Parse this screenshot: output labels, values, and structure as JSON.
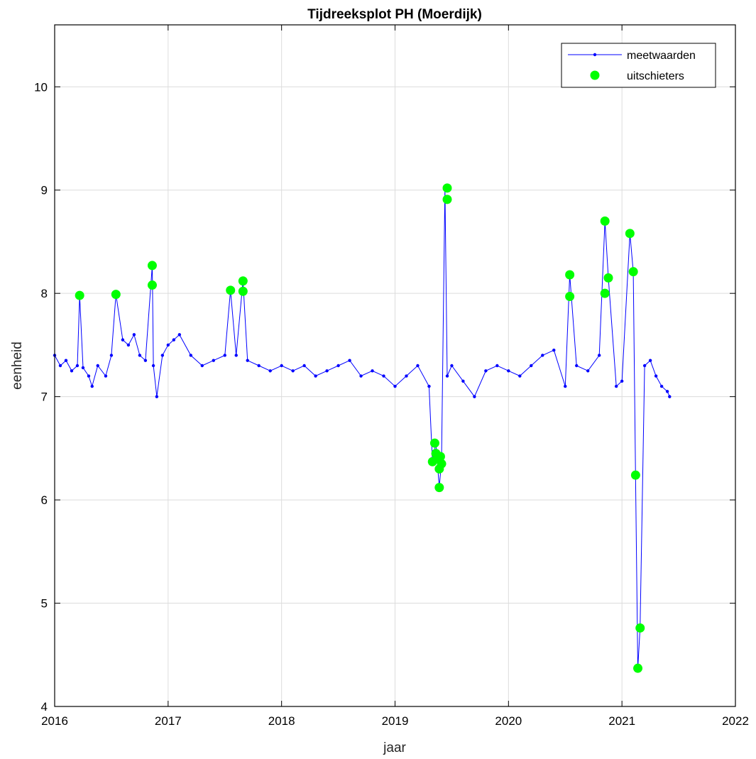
{
  "chart_data": {
    "type": "scatter",
    "title": "Tijdreeksplot PH (Moerdijk)",
    "xlabel": "jaar",
    "ylabel": "eenheid",
    "xlim": [
      2016,
      2022
    ],
    "ylim": [
      4,
      10.6
    ],
    "xticks": [
      2016,
      2017,
      2018,
      2019,
      2020,
      2021,
      2022
    ],
    "yticks": [
      4,
      5,
      6,
      7,
      8,
      9,
      10
    ],
    "grid": true,
    "legend_position": "top-right",
    "series": [
      {
        "name": "meetwaarden",
        "kind": "line-with-markers",
        "color": "#0000ff",
        "x": [
          2016.0,
          2016.05,
          2016.1,
          2016.15,
          2016.2,
          2016.22,
          2016.25,
          2016.3,
          2016.33,
          2016.38,
          2016.45,
          2016.5,
          2016.54,
          2016.6,
          2016.65,
          2016.7,
          2016.75,
          2016.8,
          2016.86,
          2016.87,
          2016.9,
          2016.95,
          2017.0,
          2017.05,
          2017.1,
          2017.2,
          2017.3,
          2017.4,
          2017.5,
          2017.55,
          2017.6,
          2017.66,
          2017.7,
          2017.8,
          2017.9,
          2018.0,
          2018.1,
          2018.2,
          2018.3,
          2018.4,
          2018.5,
          2018.6,
          2018.7,
          2018.8,
          2018.9,
          2019.0,
          2019.1,
          2019.2,
          2019.3,
          2019.33,
          2019.36,
          2019.39,
          2019.41,
          2019.44,
          2019.46,
          2019.5,
          2019.6,
          2019.7,
          2019.8,
          2019.9,
          2020.0,
          2020.1,
          2020.2,
          2020.3,
          2020.4,
          2020.5,
          2020.54,
          2020.6,
          2020.7,
          2020.8,
          2020.85,
          2020.88,
          2020.95,
          2021.0,
          2021.07,
          2021.1,
          2021.12,
          2021.14,
          2021.16,
          2021.2,
          2021.25,
          2021.3,
          2021.35,
          2021.4,
          2021.42
        ],
        "y": [
          7.4,
          7.3,
          7.35,
          7.25,
          7.3,
          7.98,
          7.28,
          7.2,
          7.1,
          7.3,
          7.2,
          7.4,
          7.99,
          7.55,
          7.5,
          7.6,
          7.4,
          7.35,
          8.27,
          7.3,
          7.0,
          7.4,
          7.5,
          7.55,
          7.6,
          7.4,
          7.3,
          7.35,
          7.4,
          8.03,
          7.4,
          8.12,
          7.35,
          7.3,
          7.25,
          7.3,
          7.25,
          7.3,
          7.2,
          7.25,
          7.3,
          7.35,
          7.2,
          7.25,
          7.2,
          7.1,
          7.2,
          7.3,
          7.1,
          6.37,
          6.55,
          6.12,
          6.38,
          9.02,
          7.2,
          7.3,
          7.15,
          7.0,
          7.25,
          7.3,
          7.25,
          7.2,
          7.3,
          7.4,
          7.45,
          7.1,
          8.18,
          7.3,
          7.25,
          7.4,
          8.7,
          8.15,
          7.1,
          7.15,
          8.58,
          8.21,
          6.24,
          4.37,
          4.76,
          7.3,
          7.35,
          7.2,
          7.1,
          7.05,
          7.0
        ]
      },
      {
        "name": "uitschieters",
        "kind": "markers",
        "color": "#00ff00",
        "x": [
          2016.22,
          2016.54,
          2016.86,
          2016.86,
          2017.55,
          2017.66,
          2017.66,
          2019.33,
          2019.35,
          2019.36,
          2019.38,
          2019.39,
          2019.39,
          2019.4,
          2019.41,
          2019.46,
          2019.46,
          2020.54,
          2020.54,
          2020.85,
          2020.85,
          2020.88,
          2021.07,
          2021.1,
          2021.12,
          2021.14,
          2021.16
        ],
        "y": [
          7.98,
          7.99,
          8.27,
          8.08,
          8.03,
          8.12,
          8.02,
          6.37,
          6.55,
          6.45,
          6.4,
          6.3,
          6.12,
          6.42,
          6.35,
          9.02,
          8.91,
          8.18,
          7.97,
          8.7,
          8.0,
          8.15,
          8.58,
          8.21,
          6.24,
          4.37,
          4.76
        ]
      }
    ]
  }
}
